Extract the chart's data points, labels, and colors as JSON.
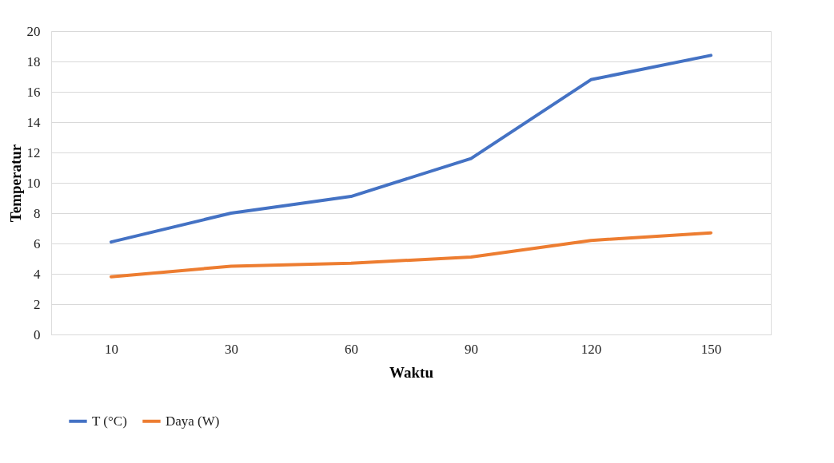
{
  "chart_data": {
    "type": "line",
    "xlabel": "Waktu",
    "ylabel": "Temperatur",
    "categories": [
      "10",
      "30",
      "60",
      "90",
      "120",
      "150"
    ],
    "series": [
      {
        "name": "T (°C)",
        "color": "#4472c4",
        "values": [
          6.1,
          8.0,
          9.1,
          11.6,
          16.8,
          18.4
        ]
      },
      {
        "name": "Daya (W)",
        "color": "#ed7d31",
        "values": [
          3.8,
          4.5,
          4.7,
          5.1,
          6.2,
          6.7
        ]
      }
    ],
    "ylim": [
      0,
      20
    ],
    "yticks": [
      0,
      2,
      4,
      6,
      8,
      10,
      12,
      14,
      16,
      18,
      20
    ],
    "grid": "y",
    "legend": "bottom",
    "marker": "none",
    "line_style": "solid"
  }
}
